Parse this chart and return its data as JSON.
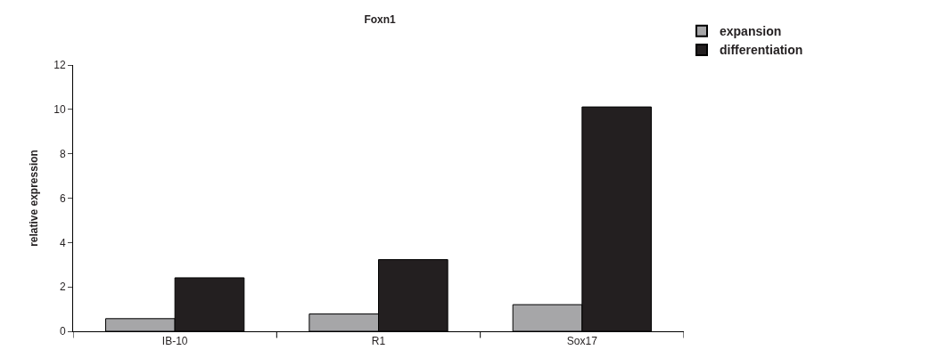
{
  "chart_data": {
    "type": "bar",
    "title": "Foxn1",
    "ylabel": "relative expression",
    "categories": [
      "IB-10",
      "R1",
      "Sox17"
    ],
    "series": [
      {
        "name": "expansion",
        "color": "#a6a6a8",
        "values": [
          0.57,
          0.78,
          1.2
        ]
      },
      {
        "name": "differentiation",
        "color": "#231f20",
        "values": [
          2.41,
          3.23,
          10.11
        ]
      }
    ],
    "ylim": [
      0,
      12
    ],
    "yticks": [
      0,
      2,
      4,
      6,
      8,
      10,
      12
    ],
    "legend": "top right"
  }
}
